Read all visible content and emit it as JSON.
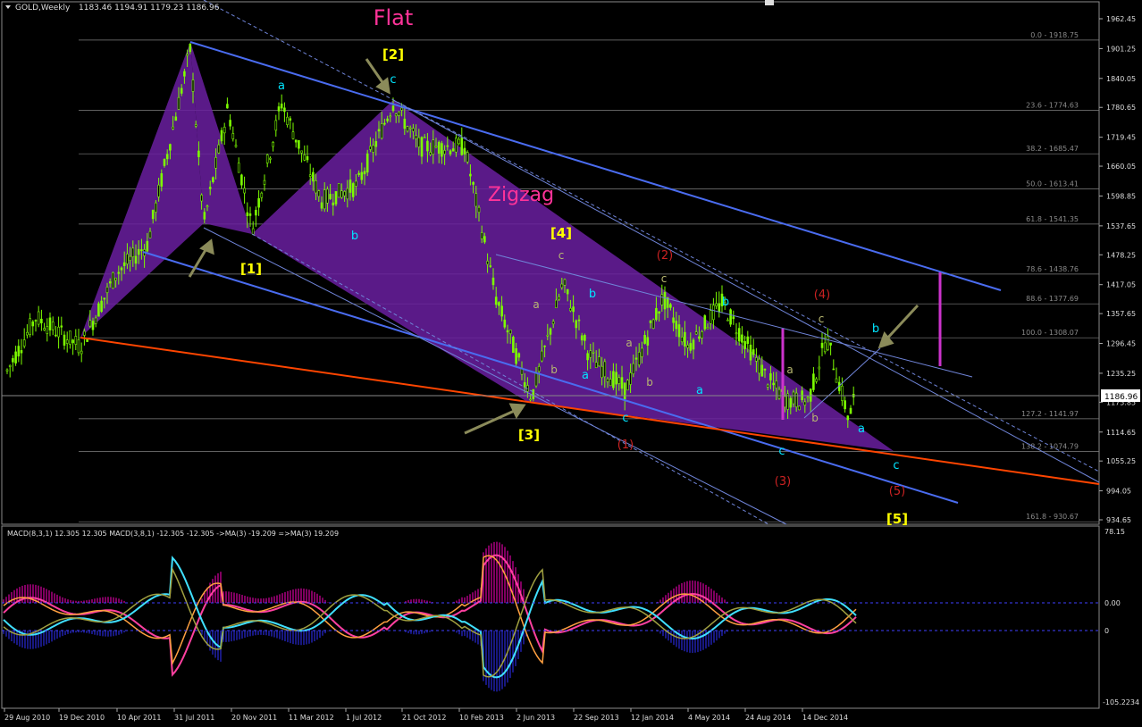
{
  "header": {
    "symbol": "GOLD,Weekly",
    "ohlc": "1183.46 1194.91 1179.23 1186.96"
  },
  "indicator": {
    "label": "MACD(8,3,1) 12.305 12.305   MACD(3,8,1) -12.305 -12.305   ->MA(3) -19.209  =>MA(3) 19.209",
    "axis_labels": [
      "78.15",
      "0.00",
      "0",
      "-105.2234"
    ]
  },
  "colors": {
    "background": "#000000",
    "candles": "#7cfc00",
    "channel": "#4a6cf0",
    "support": "#ff4500",
    "wedge": "#6a1fa0",
    "fib": "#808080",
    "arrows": "#8b8b5a",
    "macd_magenta": "#ff40a0",
    "macd_cyan": "#40e0ff",
    "macd_orange": "#ffa040",
    "macd_olive": "#a0a040",
    "hist_magenta": "#ff00c0",
    "hist_blue": "#3030ff"
  },
  "chart_data": {
    "type": "candlestick",
    "title": "GOLD, Weekly",
    "y_axis_ticks": [
      1962.45,
      1901.25,
      1840.05,
      1780.65,
      1719.45,
      1660.05,
      1598.85,
      1537.65,
      1478.25,
      1417.05,
      1357.65,
      1296.45,
      1235.25,
      1175.85,
      1114.65,
      1055.25,
      994.05,
      934.65
    ],
    "current_price": "1186.96",
    "x_axis_labels": [
      "29 Aug 2010",
      "19 Dec 2010",
      "10 Apr 2011",
      "31 Jul 2011",
      "20 Nov 2011",
      "11 Mar 2012",
      "1 Jul 2012",
      "21 Oct 2012",
      "10 Feb 2013",
      "2 Jun 2013",
      "22 Sep 2013",
      "12 Jan 2014",
      "4 May 2014",
      "24 Aug 2014",
      "14 Dec 2014"
    ],
    "fibonacci_levels": [
      {
        "label": "0.0 - 1918.75",
        "price": 1918.75
      },
      {
        "label": "23.6 - 1774.63",
        "price": 1774.63
      },
      {
        "label": "38.2 - 1685.47",
        "price": 1685.47
      },
      {
        "label": "50.0 - 1613.41",
        "price": 1613.41
      },
      {
        "label": "61.8 - 1541.35",
        "price": 1541.35
      },
      {
        "label": "78.6 - 1438.76",
        "price": 1438.76
      },
      {
        "label": "88.6 - 1377.69",
        "price": 1377.69
      },
      {
        "label": "100.0 - 1308.07",
        "price": 1308.07
      },
      {
        "label": "127.2 - 1141.97",
        "price": 1141.97
      },
      {
        "label": "138.2 - 1074.79",
        "price": 1074.79
      },
      {
        "label": "161.8 - 930.67",
        "price": 930.67
      }
    ],
    "annotations": [
      {
        "text": "Flat",
        "color": "#ff3399"
      },
      {
        "text": "Zigzag",
        "color": "#ff3399"
      },
      {
        "text": "[2]",
        "color": "#ffff00"
      },
      {
        "text": "[1]",
        "color": "#ffff00"
      },
      {
        "text": "[3]",
        "color": "#ffff00"
      },
      {
        "text": "[4]",
        "color": "#ffff00"
      },
      {
        "text": "[5]",
        "color": "#ffff00"
      },
      {
        "text": "a",
        "color": "#00e5ff"
      },
      {
        "text": "b",
        "color": "#00e5ff"
      },
      {
        "text": "c",
        "color": "#00e5ff"
      },
      {
        "text": "b",
        "color": "#00e5ff"
      },
      {
        "text": "a",
        "color": "#00e5ff"
      },
      {
        "text": "c",
        "color": "#00e5ff"
      },
      {
        "text": "b",
        "color": "#00e5ff"
      },
      {
        "text": "a",
        "color": "#00e5ff"
      },
      {
        "text": "c",
        "color": "#00e5ff"
      },
      {
        "text": "b",
        "color": "#00e5ff"
      },
      {
        "text": "a",
        "color": "#00e5ff"
      },
      {
        "text": "c",
        "color": "#00e5ff"
      },
      {
        "text": "c",
        "color": "#b8b870"
      },
      {
        "text": "a",
        "color": "#b8b870"
      },
      {
        "text": "b",
        "color": "#b8b870"
      },
      {
        "text": "a",
        "color": "#b8b870"
      },
      {
        "text": "b",
        "color": "#b8b870"
      },
      {
        "text": "c",
        "color": "#b8b870"
      },
      {
        "text": "c",
        "color": "#b8b870"
      },
      {
        "text": "a",
        "color": "#b8b870"
      },
      {
        "text": "b",
        "color": "#b8b870"
      },
      {
        "text": "(1)",
        "color": "#cc2222"
      },
      {
        "text": "(2)",
        "color": "#cc2222"
      },
      {
        "text": "(3)",
        "color": "#cc2222"
      },
      {
        "text": "(4)",
        "color": "#cc2222"
      },
      {
        "text": "(5)",
        "color": "#cc2222"
      }
    ]
  }
}
